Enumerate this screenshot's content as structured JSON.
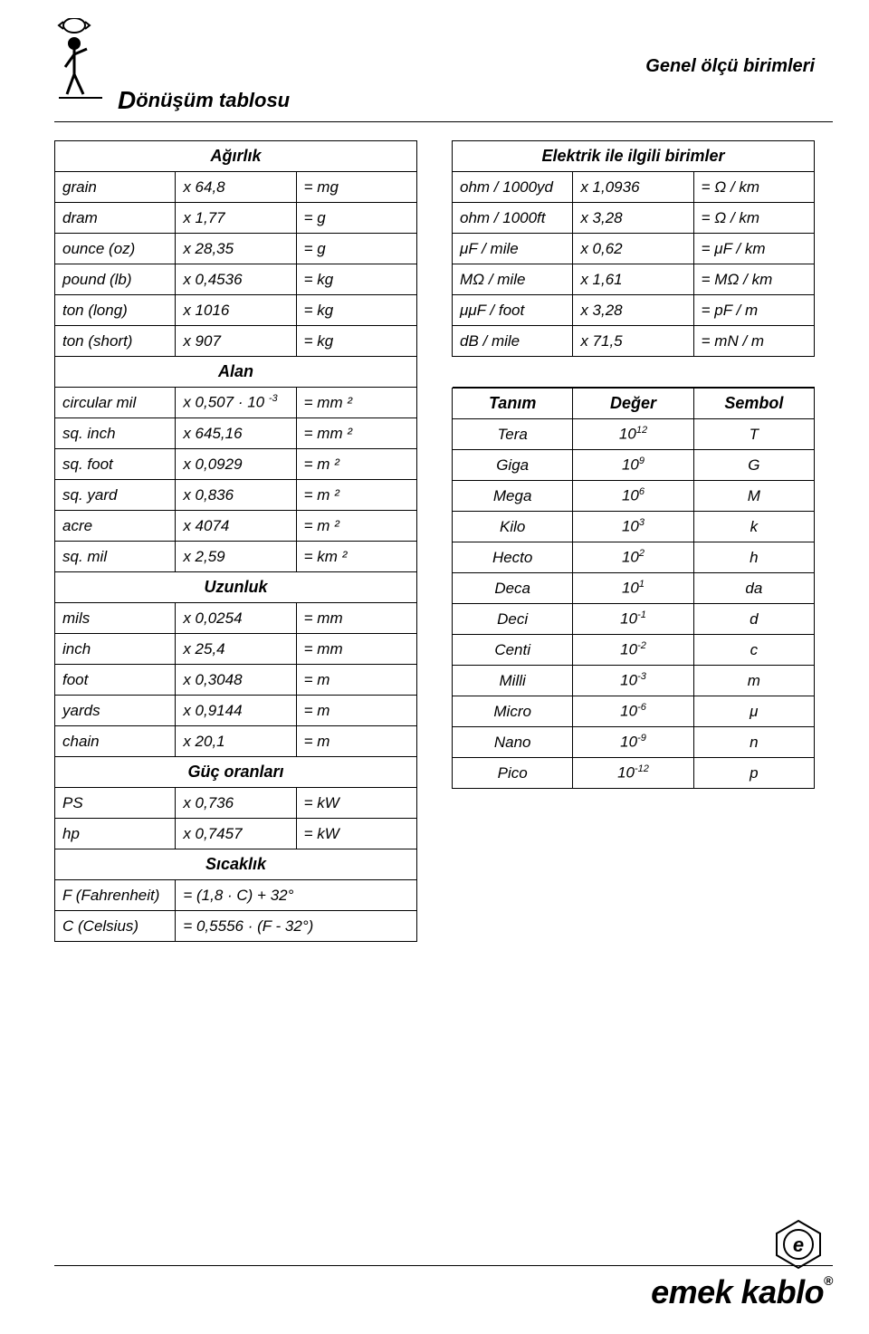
{
  "header": {
    "right_title": "Genel ölçü birimleri",
    "left_title_big": "D",
    "left_title_rest": "önüşüm tablosu"
  },
  "left": {
    "sections": {
      "weight": "Ağırlık",
      "area": "Alan",
      "length": "Uzunluk",
      "power": "Güç oranları",
      "temp": "Sıcaklık"
    },
    "weight_rows": [
      {
        "a": "grain",
        "b": "x 64,8",
        "c": "= mg"
      },
      {
        "a": "dram",
        "b": "x 1,77",
        "c": "= g"
      },
      {
        "a": "ounce (oz)",
        "b": "x 28,35",
        "c": "= g"
      },
      {
        "a": "pound (lb)",
        "b": "x 0,4536",
        "c": "= kg"
      },
      {
        "a": "ton (long)",
        "b": "x 1016",
        "c": "= kg"
      },
      {
        "a": "ton (short)",
        "b": "x 907",
        "c": "= kg"
      }
    ],
    "area_rows": [
      {
        "a": "circular mil",
        "b_html": "x 0,507 · 10 <sup>-3</sup>",
        "c": "= mm ²"
      },
      {
        "a": "sq. inch",
        "b": "x 645,16",
        "c": "= mm ²"
      },
      {
        "a": "sq. foot",
        "b": "x 0,0929",
        "c": "= m ²"
      },
      {
        "a": "sq. yard",
        "b": "x 0,836",
        "c": "= m ²"
      },
      {
        "a": "acre",
        "b": "x 4074",
        "c": "= m ²"
      },
      {
        "a": "sq. mil",
        "b": "x 2,59",
        "c": "= km ²"
      }
    ],
    "length_rows": [
      {
        "a": "mils",
        "b": "x 0,0254",
        "c": "= mm"
      },
      {
        "a": "inch",
        "b": "x 25,4",
        "c": "= mm"
      },
      {
        "a": "foot",
        "b": "x 0,3048",
        "c": "= m"
      },
      {
        "a": "yards",
        "b": "x 0,9144",
        "c": "= m"
      },
      {
        "a": "chain",
        "b": "x 20,1",
        "c": "= m"
      }
    ],
    "power_rows": [
      {
        "a": "PS",
        "b": "x 0,736",
        "c": "= kW"
      },
      {
        "a": "hp",
        "b": "x 0,7457",
        "c": "= kW"
      }
    ],
    "temp_rows": [
      {
        "a": "F (Fahrenheit)",
        "bc": "= (1,8 · C) + 32°"
      },
      {
        "a": "C (Celsius)",
        "bc": "= 0,5556 · (F - 32°)"
      }
    ]
  },
  "right": {
    "elec_title": "Elektrik ile ilgili birimler",
    "elec_rows": [
      {
        "a": "ohm / 1000yd",
        "b": "x 1,0936",
        "c": "= Ω / km"
      },
      {
        "a": "ohm / 1000ft",
        "b": "x 3,28",
        "c": "= Ω / km"
      },
      {
        "a": "μF / mile",
        "b": "x 0,62",
        "c": "= μF / km"
      },
      {
        "a": "MΩ / mile",
        "b": "x 1,61",
        "c": "= MΩ / km"
      },
      {
        "a": "μμF / foot",
        "b": "x 3,28",
        "c": "= pF / m"
      },
      {
        "a": "dB / mile",
        "b": "x 71,5",
        "c": "= mN / m"
      }
    ],
    "prefix_head": {
      "a": "Tanım",
      "b": "Değer",
      "c": "Sembol"
    },
    "prefix_rows": [
      {
        "a": "Tera",
        "exp": "12",
        "c": "T"
      },
      {
        "a": "Giga",
        "exp": "9",
        "c": "G"
      },
      {
        "a": "Mega",
        "exp": "6",
        "c": "M"
      },
      {
        "a": "Kilo",
        "exp": "3",
        "c": "k"
      },
      {
        "a": "Hecto",
        "exp": "2",
        "c": "h"
      },
      {
        "a": "Deca",
        "exp": "1",
        "c": "da"
      },
      {
        "a": "Deci",
        "exp": "-1",
        "c": "d"
      },
      {
        "a": "Centi",
        "exp": "-2",
        "c": "c"
      },
      {
        "a": "Milli",
        "exp": "-3",
        "c": "m"
      },
      {
        "a": "Micro",
        "exp": "-6",
        "c": "μ"
      },
      {
        "a": "Nano",
        "exp": "-9",
        "c": "n"
      },
      {
        "a": "Pico",
        "exp": "-12",
        "c": "p"
      }
    ]
  },
  "footer": {
    "brand": "emek kablo"
  },
  "style": {
    "font_family": "Arial",
    "text_color": "#000000",
    "bg_color": "#ffffff",
    "border_color": "#000000",
    "cell_font_size": 17,
    "header_font_size": 20,
    "brand_font_size": 36
  }
}
